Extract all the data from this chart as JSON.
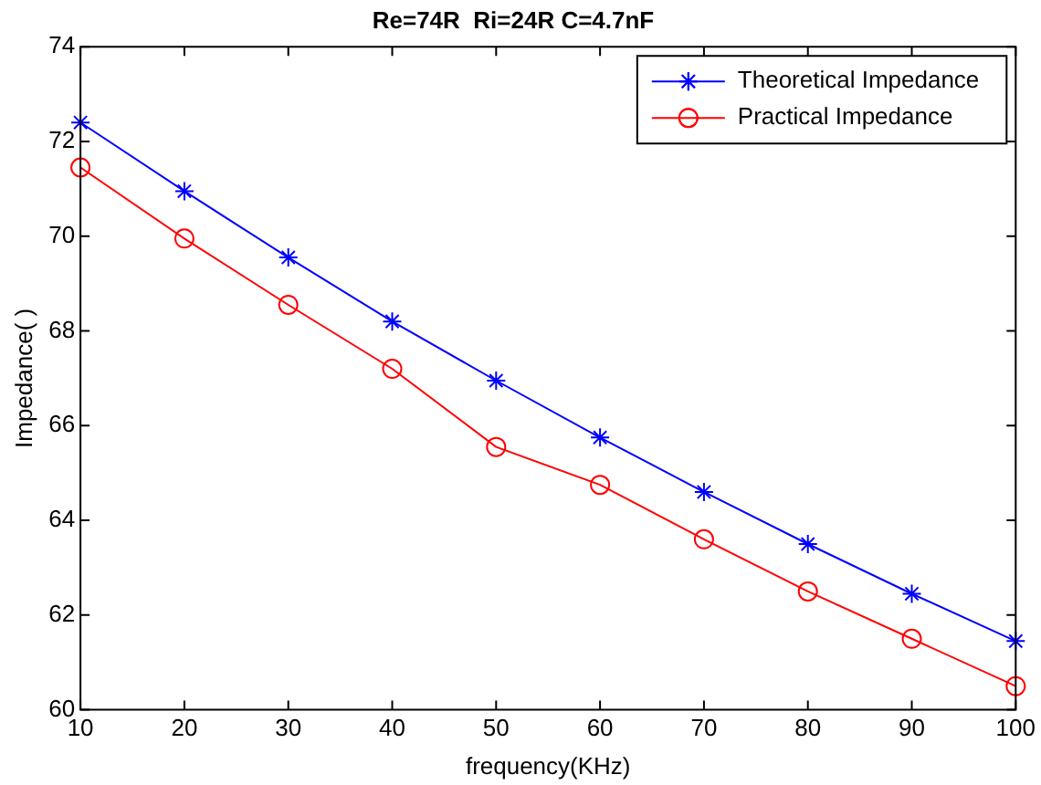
{
  "chart_data": {
    "type": "line",
    "title": "Re=74R  Ri=24R C=4.7nF",
    "xlabel": "frequency(KHz)",
    "ylabel": "Impedance( )",
    "x": [
      10,
      20,
      30,
      40,
      50,
      60,
      70,
      80,
      90,
      100
    ],
    "series": [
      {
        "name": "Theoretical Impedance",
        "color": "#0000ff",
        "marker": "cross",
        "values": [
          72.4,
          70.95,
          69.55,
          68.2,
          66.95,
          65.75,
          64.6,
          63.5,
          62.45,
          61.45
        ]
      },
      {
        "name": "Practical Impedance",
        "color": "#ff0000",
        "marker": "circle",
        "values": [
          71.45,
          69.95,
          68.55,
          67.2,
          65.55,
          64.75,
          63.6,
          62.5,
          61.5,
          60.5
        ]
      }
    ],
    "xlim": [
      10,
      100
    ],
    "xticks": [
      10,
      20,
      30,
      40,
      50,
      60,
      70,
      80,
      90,
      100
    ],
    "ylim": [
      60,
      74
    ],
    "yticks": [
      60,
      62,
      64,
      66,
      68,
      70,
      72,
      74
    ],
    "grid": false,
    "legend": "top right",
    "line_style": "solid"
  }
}
